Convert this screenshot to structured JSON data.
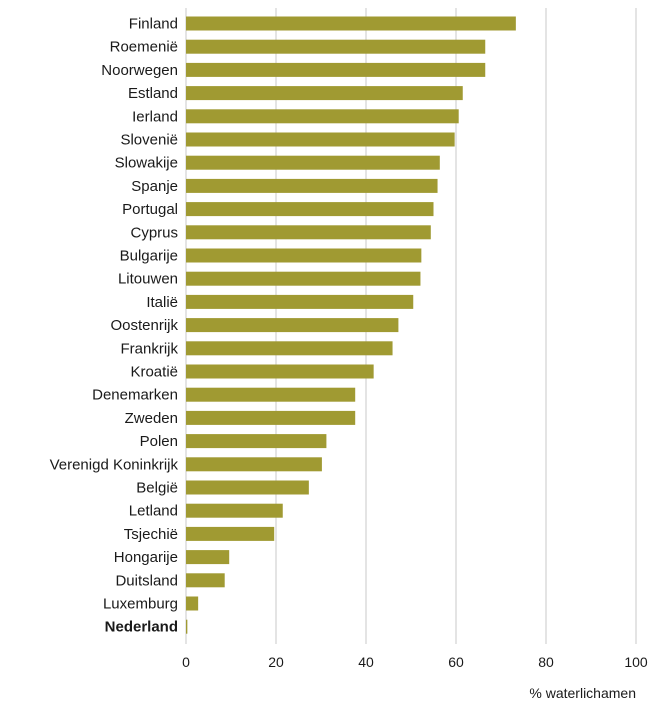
{
  "chart_data": {
    "type": "bar",
    "orientation": "horizontal",
    "categories": [
      "Finland",
      "Roemenië",
      "Noorwegen",
      "Estland",
      "Ierland",
      "Slovenië",
      "Slowakije",
      "Spanje",
      "Portugal",
      "Cyprus",
      "Bulgarije",
      "Litouwen",
      "Italië",
      "Oostenrijk",
      "Frankrijk",
      "Kroatië",
      "Denemarken",
      "Zweden",
      "Polen",
      "Verenigd Koninkrijk",
      "België",
      "Letland",
      "Tsjechië",
      "Hongarije",
      "Duitsland",
      "Luxemburg",
      "Nederland"
    ],
    "values": [
      73.3,
      66.5,
      66.5,
      61.5,
      60.6,
      59.7,
      56.4,
      55.9,
      55.0,
      54.4,
      52.3,
      52.1,
      50.5,
      47.2,
      45.9,
      41.7,
      37.6,
      37.6,
      31.2,
      30.2,
      27.3,
      21.5,
      19.6,
      9.6,
      8.6,
      2.7,
      0.3
    ],
    "highlight": "Nederland",
    "xlabel": "% waterlichamen",
    "xlim": [
      0,
      100
    ],
    "xticks": [
      0,
      20,
      40,
      60,
      80,
      100
    ],
    "grid": true,
    "bar_color": "#a09a32",
    "grid_color": "#c8c8c8"
  }
}
